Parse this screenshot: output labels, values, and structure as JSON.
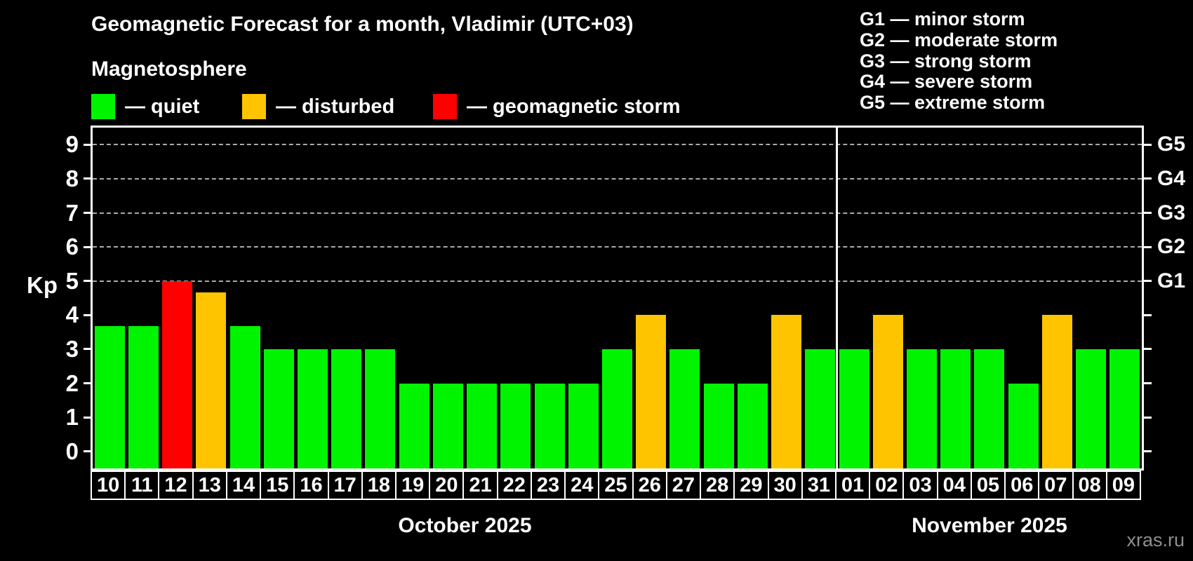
{
  "header": {
    "title": "Geomagnetic Forecast for a month, Vladimir (UTC+03)",
    "subtitle": "Magnetosphere"
  },
  "legend": [
    {
      "key": "quiet",
      "label": "— quiet",
      "color": "#00f400"
    },
    {
      "key": "disturbed",
      "label": "— disturbed",
      "color": "#ffc400"
    },
    {
      "key": "storm",
      "label": "— geomagnetic storm",
      "color": "#ff0000"
    }
  ],
  "storm_scale_legend": [
    "G1 — minor storm",
    "G2 — moderate storm",
    "G3 — strong storm",
    "G4 — severe storm",
    "G5 — extreme storm"
  ],
  "watermark": "xras.ru",
  "chart_data": {
    "type": "bar",
    "title": "Geomagnetic Forecast for a month, Vladimir (UTC+03)",
    "ylabel": "Kp",
    "ylim": [
      -0.5,
      9.5
    ],
    "yticks": [
      0,
      1,
      2,
      3,
      4,
      5,
      6,
      7,
      8,
      9
    ],
    "gridlines_kp": [
      5,
      6,
      7,
      8,
      9
    ],
    "right_axis": [
      {
        "kp": 5,
        "label": "G1"
      },
      {
        "kp": 6,
        "label": "G2"
      },
      {
        "kp": 7,
        "label": "G3"
      },
      {
        "kp": 8,
        "label": "G4"
      },
      {
        "kp": 9,
        "label": "G5"
      }
    ],
    "months": [
      {
        "label": "October 2025",
        "days": 22
      },
      {
        "label": "November 2025",
        "days": 9
      }
    ],
    "categories": [
      "10",
      "11",
      "12",
      "13",
      "14",
      "15",
      "16",
      "17",
      "18",
      "19",
      "20",
      "21",
      "22",
      "23",
      "24",
      "25",
      "26",
      "27",
      "28",
      "29",
      "30",
      "31",
      "01",
      "02",
      "03",
      "04",
      "05",
      "06",
      "07",
      "08",
      "09"
    ],
    "values": [
      3.67,
      3.67,
      5,
      4.67,
      3.67,
      3,
      3,
      3,
      3,
      2,
      2,
      2,
      2,
      2,
      2,
      3,
      4,
      3,
      2,
      2,
      4,
      3,
      3,
      4,
      3,
      3,
      3,
      2,
      4,
      3,
      3
    ],
    "levels": [
      "quiet",
      "quiet",
      "storm",
      "disturbed",
      "quiet",
      "quiet",
      "quiet",
      "quiet",
      "quiet",
      "quiet",
      "quiet",
      "quiet",
      "quiet",
      "quiet",
      "quiet",
      "quiet",
      "disturbed",
      "quiet",
      "quiet",
      "quiet",
      "disturbed",
      "quiet",
      "quiet",
      "disturbed",
      "quiet",
      "quiet",
      "quiet",
      "quiet",
      "disturbed",
      "quiet",
      "quiet"
    ]
  }
}
